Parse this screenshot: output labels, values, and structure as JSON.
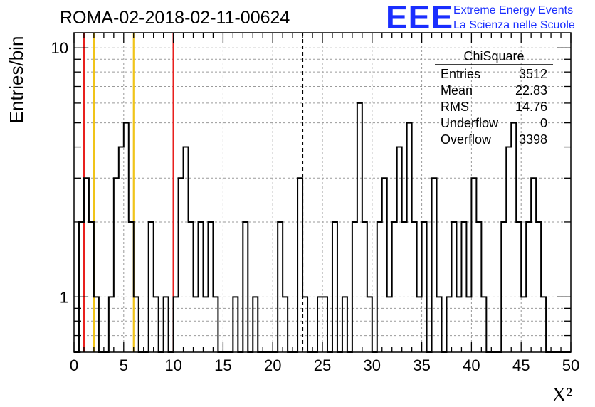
{
  "chart_data": {
    "type": "histogram",
    "title": "ROMA-02-2018-02-11-00624",
    "xlabel": "X²",
    "ylabel": "Entries/bin",
    "xlim": [
      0,
      50
    ],
    "ylim": [
      0.6,
      11.5
    ],
    "yscale": "log",
    "grid": true,
    "bin_width": 0.5,
    "x_ticks": [
      "0",
      "5",
      "10",
      "15",
      "20",
      "25",
      "30",
      "35",
      "40",
      "45",
      "50"
    ],
    "y_ticks": [
      "1",
      "10"
    ],
    "bins": [
      [
        0.5,
        2
      ],
      [
        1.0,
        3
      ],
      [
        1.5,
        2
      ],
      [
        2.0,
        1
      ],
      [
        3.5,
        1
      ],
      [
        4.0,
        3
      ],
      [
        4.5,
        4
      ],
      [
        5.0,
        5
      ],
      [
        5.5,
        2
      ],
      [
        6.0,
        1
      ],
      [
        7.5,
        2
      ],
      [
        8.0,
        1
      ],
      [
        9.0,
        1
      ],
      [
        10.0,
        1
      ],
      [
        10.5,
        3
      ],
      [
        11.0,
        4
      ],
      [
        11.5,
        2
      ],
      [
        12.0,
        1
      ],
      [
        12.5,
        2
      ],
      [
        13.0,
        1
      ],
      [
        13.5,
        2
      ],
      [
        14.0,
        1
      ],
      [
        16.0,
        1
      ],
      [
        17.0,
        2
      ],
      [
        18.0,
        1
      ],
      [
        20.5,
        2
      ],
      [
        21.0,
        1
      ],
      [
        22.5,
        3
      ],
      [
        23.0,
        1
      ],
      [
        24.5,
        1
      ],
      [
        25.0,
        1
      ],
      [
        26.0,
        2
      ],
      [
        27.0,
        1
      ],
      [
        28.0,
        2
      ],
      [
        28.5,
        6
      ],
      [
        29.0,
        2
      ],
      [
        29.5,
        1
      ],
      [
        30.5,
        2
      ],
      [
        31.0,
        3
      ],
      [
        31.5,
        1
      ],
      [
        32.0,
        2
      ],
      [
        32.5,
        4
      ],
      [
        33.0,
        2
      ],
      [
        33.5,
        5
      ],
      [
        34.0,
        2
      ],
      [
        34.5,
        1
      ],
      [
        35.0,
        2
      ],
      [
        36.0,
        3
      ],
      [
        36.5,
        1
      ],
      [
        37.5,
        1
      ],
      [
        38.0,
        2
      ],
      [
        38.5,
        1
      ],
      [
        39.0,
        2
      ],
      [
        39.5,
        1
      ],
      [
        40.0,
        3
      ],
      [
        40.5,
        2
      ],
      [
        41.0,
        1
      ],
      [
        43.0,
        2
      ],
      [
        43.5,
        4
      ],
      [
        44.0,
        5
      ],
      [
        44.5,
        2
      ],
      [
        45.0,
        1
      ],
      [
        45.5,
        2
      ],
      [
        46.0,
        3
      ],
      [
        46.5,
        2
      ],
      [
        47.0,
        1
      ]
    ],
    "vertical_lines": [
      {
        "x": 1,
        "color": "#e8201e",
        "style": "solid"
      },
      {
        "x": 2,
        "color": "#f0c419",
        "style": "solid"
      },
      {
        "x": 6,
        "color": "#f0c419",
        "style": "solid"
      },
      {
        "x": 10,
        "color": "#e8201e",
        "style": "solid"
      },
      {
        "x": 23,
        "color": "#000000",
        "style": "dashed"
      }
    ],
    "stats_box": {
      "title": "ChiSquare",
      "rows": [
        {
          "label": "Entries",
          "value": "3512"
        },
        {
          "label": "Mean",
          "value": "22.83"
        },
        {
          "label": "RMS",
          "value": "14.76"
        },
        {
          "label": "Underflow",
          "value": "0"
        },
        {
          "label": "Overflow",
          "value": "3398"
        }
      ]
    }
  },
  "logo": {
    "mark": "EEE",
    "line1": "Extreme Energy Events",
    "line2": "La Scienza nelle Scuole",
    "color": "#1a2eff"
  }
}
